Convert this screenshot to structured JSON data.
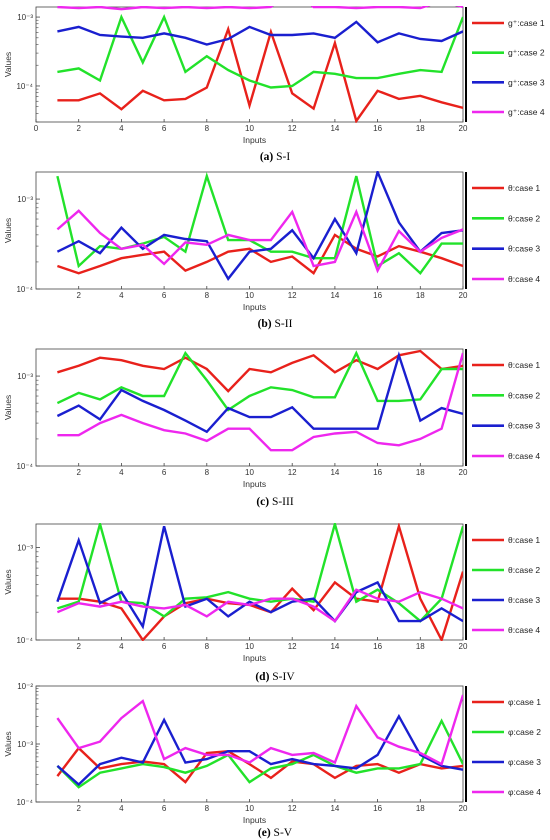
{
  "figure": {
    "panels": [
      {
        "caption_letter": "(a)",
        "caption_text": "S-I",
        "chart_data": {
          "type": "line",
          "x": [
            1,
            2,
            3,
            4,
            5,
            6,
            7,
            8,
            9,
            10,
            11,
            12,
            13,
            14,
            15,
            16,
            17,
            18,
            19,
            20
          ],
          "xlabel": "Inputs",
          "ylabel": "Values",
          "xlim": [
            0,
            20
          ],
          "xticks": [
            0,
            2,
            4,
            6,
            8,
            10,
            12,
            14,
            16,
            18,
            20
          ],
          "yscale": "log",
          "ylim": [
            3e-05,
            0.0014
          ],
          "yticks": [
            {
              "value": 0.0001,
              "label": "10⁻⁴"
            },
            {
              "value": 0.001,
              "label": "10⁻³"
            }
          ],
          "legend_position": "right",
          "series": [
            {
              "name": "g⁺:case 1",
              "color": "#e8211b",
              "values": [
                6.2e-05,
                6.2e-05,
                7.8e-05,
                4.6e-05,
                8.5e-05,
                6.2e-05,
                6.5e-05,
                9.5e-05,
                0.00067,
                5.2e-05,
                0.00061,
                7.8e-05,
                4.7e-05,
                0.00042,
                3.1e-05,
                8.5e-05,
                6.5e-05,
                7.2e-05,
                5.8e-05,
                4.8e-05
              ]
            },
            {
              "name": "g⁺:case 2",
              "color": "#22e22a",
              "values": [
                0.00016,
                0.00018,
                0.00012,
                0.001,
                0.00022,
                0.001,
                0.00016,
                0.00027,
                0.00017,
                0.00012,
                9.5e-05,
                0.0001,
                0.00016,
                0.00015,
                0.00013,
                0.00013,
                0.00015,
                0.00017,
                0.00016,
                0.001
              ]
            },
            {
              "name": "g⁺:case 3",
              "color": "#1a1fcf",
              "values": [
                0.00062,
                0.00072,
                0.00055,
                0.00052,
                0.0005,
                0.00058,
                0.0005,
                0.0004,
                0.00048,
                0.00072,
                0.00055,
                0.00055,
                0.00058,
                0.0005,
                0.00085,
                0.00043,
                0.00058,
                0.00048,
                0.00045,
                0.00062
              ]
            },
            {
              "name": "g⁺:case 4",
              "color": "#ee27ee",
              "values": [
                0.0014,
                0.00135,
                0.0014,
                0.0013,
                0.0014,
                0.00135,
                0.0014,
                0.00135,
                0.0014,
                0.00135,
                0.0014,
                0.0027,
                0.0014,
                0.0014,
                0.00135,
                0.0014,
                0.0014,
                0.00135,
                0.0017,
                0.0014
              ]
            }
          ]
        }
      },
      {
        "caption_letter": "(b)",
        "caption_text": "S-II",
        "chart_data": {
          "type": "line",
          "x": [
            1,
            2,
            3,
            4,
            5,
            6,
            7,
            8,
            9,
            10,
            11,
            12,
            13,
            14,
            15,
            16,
            17,
            18,
            19,
            20
          ],
          "xlabel": "Inputs",
          "ylabel": "Values",
          "xlim": [
            0,
            20
          ],
          "xticks": [
            2,
            4,
            6,
            8,
            10,
            12,
            14,
            16,
            18,
            20
          ],
          "yscale": "log",
          "ylim": [
            0.0001,
            0.002
          ],
          "yticks": [
            {
              "value": 0.0001,
              "label": "10⁻⁴"
            },
            {
              "value": 0.001,
              "label": "10⁻³"
            }
          ],
          "legend_position": "right",
          "series": [
            {
              "name": "θ:case 1",
              "color": "#e8211b",
              "values": [
                0.00018,
                0.00015,
                0.00018,
                0.00022,
                0.00024,
                0.00026,
                0.00016,
                0.0002,
                0.00026,
                0.00028,
                0.0002,
                0.00023,
                0.00015,
                0.0004,
                0.00028,
                0.00023,
                0.0003,
                0.00026,
                0.00022,
                0.00018
              ]
            },
            {
              "name": "θ:case 2",
              "color": "#22e22a",
              "values": [
                0.0018,
                0.00018,
                0.0003,
                0.00028,
                0.00032,
                0.00038,
                0.00026,
                0.0018,
                0.00035,
                0.00035,
                0.00026,
                0.00026,
                0.00022,
                0.00022,
                0.0018,
                0.00018,
                0.00025,
                0.00015,
                0.00032,
                0.00032
              ]
            },
            {
              "name": "θ:case 3",
              "color": "#1a1fcf",
              "values": [
                0.00026,
                0.00034,
                0.00025,
                0.00048,
                0.00028,
                0.0004,
                0.00036,
                0.00034,
                0.00013,
                0.00026,
                0.00028,
                0.00045,
                0.00022,
                0.0006,
                0.00025,
                0.002,
                0.00055,
                0.00026,
                0.00042,
                0.00045
              ]
            },
            {
              "name": "θ:case 4",
              "color": "#ee27ee",
              "values": [
                0.00046,
                0.00074,
                0.00042,
                0.00028,
                0.00031,
                0.00019,
                0.00033,
                0.00031,
                0.0004,
                0.00035,
                0.00035,
                0.00072,
                0.00018,
                0.0002,
                0.00072,
                0.00016,
                0.00044,
                0.00026,
                0.00037,
                0.00046
              ]
            }
          ]
        }
      },
      {
        "caption_letter": "(c)",
        "caption_text": "S-III",
        "chart_data": {
          "type": "line",
          "x": [
            1,
            2,
            3,
            4,
            5,
            6,
            7,
            8,
            9,
            10,
            11,
            12,
            13,
            14,
            15,
            16,
            17,
            18,
            19,
            20
          ],
          "xlabel": "Inputs",
          "ylabel": "Values",
          "xlim": [
            0,
            20
          ],
          "xticks": [
            2,
            4,
            6,
            8,
            10,
            12,
            14,
            16,
            18,
            20
          ],
          "yscale": "log",
          "ylim": [
            0.0001,
            0.002
          ],
          "yticks": [
            {
              "value": 0.0001,
              "label": "10⁻⁴"
            },
            {
              "value": 0.001,
              "label": "10⁻³"
            }
          ],
          "legend_position": "right",
          "series": [
            {
              "name": "θ:case 1",
              "color": "#e8211b",
              "values": [
                0.0011,
                0.0013,
                0.0016,
                0.0015,
                0.0013,
                0.0012,
                0.0016,
                0.0012,
                0.00068,
                0.0012,
                0.0011,
                0.0014,
                0.0017,
                0.0011,
                0.0015,
                0.0012,
                0.0017,
                0.0019,
                0.0012,
                0.0013
              ]
            },
            {
              "name": "θ:case 2",
              "color": "#22e22a",
              "values": [
                0.0005,
                0.00065,
                0.00055,
                0.00075,
                0.0006,
                0.0006,
                0.0018,
                0.0009,
                0.00042,
                0.0006,
                0.00075,
                0.0007,
                0.00058,
                0.00058,
                0.0018,
                0.00053,
                0.00053,
                0.00055,
                0.0012,
                0.0012
              ]
            },
            {
              "name": "θ:case 3",
              "color": "#1a1fcf",
              "values": [
                0.00036,
                0.00047,
                0.00033,
                0.0007,
                0.00053,
                0.00042,
                0.00032,
                0.00024,
                0.00044,
                0.00035,
                0.00035,
                0.00045,
                0.00026,
                0.00026,
                0.00026,
                0.00026,
                0.0017,
                0.00032,
                0.00044,
                0.00038
              ]
            },
            {
              "name": "θ:case 4",
              "color": "#ee27ee",
              "values": [
                0.00022,
                0.00022,
                0.0003,
                0.00037,
                0.0003,
                0.00025,
                0.00023,
                0.00019,
                0.00026,
                0.00026,
                0.00015,
                0.00015,
                0.00021,
                0.00023,
                0.00024,
                0.00018,
                0.00017,
                0.0002,
                0.00026,
                0.0018
              ]
            }
          ]
        }
      },
      {
        "caption_letter": "(d)",
        "caption_text": "S-IV",
        "chart_data": {
          "type": "line",
          "x": [
            1,
            2,
            3,
            4,
            5,
            6,
            7,
            8,
            9,
            10,
            11,
            12,
            13,
            14,
            15,
            16,
            17,
            18,
            19,
            20
          ],
          "xlabel": "Inputs",
          "ylabel": "Values",
          "xlim": [
            0,
            20
          ],
          "xticks": [
            2,
            4,
            6,
            8,
            10,
            12,
            14,
            16,
            18,
            20
          ],
          "yscale": "log",
          "ylim": [
            0.0001,
            0.0018
          ],
          "yticks": [
            {
              "value": 0.0001,
              "label": "10⁻⁴"
            },
            {
              "value": 0.001,
              "label": "10⁻³"
            }
          ],
          "legend_position": "right",
          "series": [
            {
              "name": "θ:case 1",
              "color": "#e8211b",
              "values": [
                0.00028,
                0.00028,
                0.00026,
                0.00022,
                0.0001,
                0.00018,
                0.00025,
                0.00028,
                0.00025,
                0.00024,
                0.0002,
                0.00036,
                0.00021,
                0.00042,
                0.00028,
                0.00026,
                0.0017,
                0.00028,
                0.0001,
                0.00055
              ]
            },
            {
              "name": "θ:case 2",
              "color": "#22e22a",
              "values": [
                0.00022,
                0.00026,
                0.0018,
                0.00026,
                0.00025,
                0.00018,
                0.00028,
                0.00029,
                0.00033,
                0.00028,
                0.00026,
                0.00028,
                0.00026,
                0.0018,
                0.00026,
                0.00035,
                0.00025,
                0.00016,
                0.00028,
                0.0017
              ]
            },
            {
              "name": "θ:case 3",
              "color": "#1a1fcf",
              "values": [
                0.00026,
                0.0012,
                0.00025,
                0.00033,
                0.00014,
                0.0017,
                0.00023,
                0.00028,
                0.00018,
                0.00026,
                0.0002,
                0.00026,
                0.00028,
                0.00016,
                0.00033,
                0.00042,
                0.00016,
                0.00016,
                0.00022,
                0.00016
              ]
            },
            {
              "name": "θ:case 4",
              "color": "#ee27ee",
              "values": [
                0.0002,
                0.00025,
                0.00023,
                0.00026,
                0.00023,
                0.00022,
                0.00024,
                0.00018,
                0.00026,
                0.00024,
                0.00028,
                0.00028,
                0.00023,
                0.00016,
                0.00035,
                0.00028,
                0.00026,
                0.00033,
                0.00028,
                0.00022
              ]
            }
          ]
        }
      },
      {
        "caption_letter": "(e)",
        "caption_text": "S-V",
        "chart_data": {
          "type": "line",
          "x": [
            1,
            2,
            3,
            4,
            5,
            6,
            7,
            8,
            9,
            10,
            11,
            12,
            13,
            14,
            15,
            16,
            17,
            18,
            19,
            20
          ],
          "xlabel": "Inputs",
          "ylabel": "Values",
          "xlim": [
            0,
            20
          ],
          "xticks": [
            2,
            4,
            6,
            8,
            10,
            12,
            14,
            16,
            18,
            20
          ],
          "yscale": "log",
          "ylim": [
            0.0001,
            0.01
          ],
          "yticks": [
            {
              "value": 0.0001,
              "label": "10⁻⁴"
            },
            {
              "value": 0.001,
              "label": "10⁻³"
            },
            {
              "value": 0.01,
              "label": "10⁻²"
            }
          ],
          "legend_position": "right",
          "series": [
            {
              "name": "φ:case 1",
              "color": "#e8211b",
              "values": [
                0.00028,
                0.00085,
                0.00038,
                0.00045,
                0.0005,
                0.00045,
                0.00022,
                0.0007,
                0.00075,
                0.00045,
                0.00026,
                0.0005,
                0.00045,
                0.00026,
                0.00042,
                0.00045,
                0.00032,
                0.00045,
                0.00038,
                0.00042
              ]
            },
            {
              "name": "φ:case 2",
              "color": "#22e22a",
              "values": [
                0.00042,
                0.00018,
                0.00032,
                0.00038,
                0.00045,
                0.0004,
                0.00032,
                0.00042,
                0.00065,
                0.00022,
                0.00038,
                0.00045,
                0.00065,
                0.00042,
                0.00032,
                0.00038,
                0.00038,
                0.00045,
                0.0025,
                0.00045
              ]
            },
            {
              "name": "φ:case 3",
              "color": "#1a1fcf",
              "values": [
                0.00042,
                0.0002,
                0.00045,
                0.00058,
                0.00048,
                0.0026,
                0.00048,
                0.00055,
                0.00075,
                0.00075,
                0.00045,
                0.00055,
                0.00045,
                0.00042,
                0.00038,
                0.00065,
                0.003,
                0.00065,
                0.00042,
                0.00036
              ]
            },
            {
              "name": "φ:case 4",
              "color": "#ee27ee",
              "values": [
                0.0028,
                0.00085,
                0.0011,
                0.0028,
                0.0055,
                0.00055,
                0.00085,
                0.00065,
                0.00065,
                0.00048,
                0.00085,
                0.00065,
                0.0007,
                0.00048,
                0.0045,
                0.0013,
                0.0009,
                0.0007,
                0.00045,
                0.007
              ]
            }
          ]
        }
      }
    ]
  }
}
